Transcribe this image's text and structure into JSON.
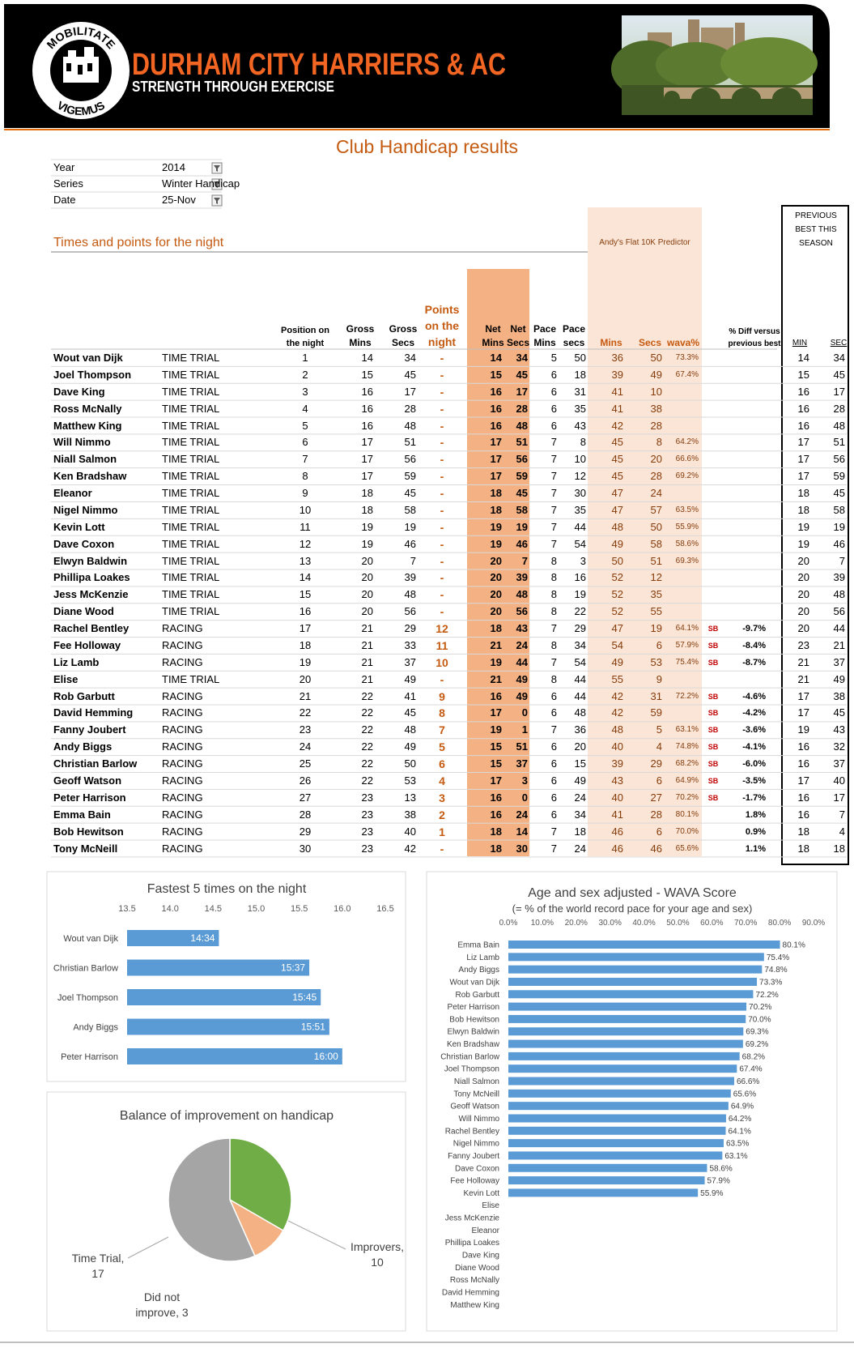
{
  "header": {
    "title": "DURHAM CITY HARRIERS & AC",
    "subtitle": "STRENGTH THROUGH EXERCISE",
    "motto_top": "MOBILITATE",
    "motto_bottom": "VIGEMUS"
  },
  "page_title": "Club Handicap results",
  "filters": [
    {
      "label": "Year",
      "value": 2014
    },
    {
      "label": "Series",
      "value": "Winter Handicap"
    },
    {
      "label": "Date",
      "value": "25-Nov"
    }
  ],
  "section_title": "Times and points for the night",
  "predictor_label": "Andy's Flat 10K Predictor",
  "previous_best_label": "PREVIOUS BEST THIS SEASON",
  "table": {
    "columns": [
      "Position on the night",
      "Gross Mins",
      "Gross Secs",
      "Points on the night",
      "Net Mins",
      "Net Secs",
      "Pace Mins",
      "Pace secs",
      "Mins",
      "Secs",
      "wava%",
      "% Diff versus previous best",
      "MIN",
      "SEC"
    ],
    "rows": [
      [
        "Wout van Dijk",
        "TIME TRIAL",
        1,
        14,
        34,
        "-",
        14,
        34,
        5,
        50,
        36,
        50,
        "73.3%",
        null,
        null,
        14,
        34
      ],
      [
        "Joel Thompson",
        "TIME TRIAL",
        2,
        15,
        45,
        "-",
        15,
        45,
        6,
        18,
        39,
        49,
        "67.4%",
        null,
        null,
        15,
        45
      ],
      [
        "Dave King",
        "TIME TRIAL",
        3,
        16,
        17,
        "-",
        16,
        17,
        6,
        31,
        41,
        10,
        null,
        null,
        null,
        16,
        17
      ],
      [
        "Ross McNally",
        "TIME TRIAL",
        4,
        16,
        28,
        "-",
        16,
        28,
        6,
        35,
        41,
        38,
        null,
        null,
        null,
        16,
        28
      ],
      [
        "Matthew King",
        "TIME TRIAL",
        5,
        16,
        48,
        "-",
        16,
        48,
        6,
        43,
        42,
        28,
        null,
        null,
        null,
        16,
        48
      ],
      [
        "Will Nimmo",
        "TIME TRIAL",
        6,
        17,
        51,
        "-",
        17,
        51,
        7,
        8,
        45,
        8,
        "64.2%",
        null,
        null,
        17,
        51
      ],
      [
        "Niall Salmon",
        "TIME TRIAL",
        7,
        17,
        56,
        "-",
        17,
        56,
        7,
        10,
        45,
        20,
        "66.6%",
        null,
        null,
        17,
        56
      ],
      [
        "Ken Bradshaw",
        "TIME TRIAL",
        8,
        17,
        59,
        "-",
        17,
        59,
        7,
        12,
        45,
        28,
        "69.2%",
        null,
        null,
        17,
        59
      ],
      [
        "Eleanor",
        "TIME TRIAL",
        9,
        18,
        45,
        "-",
        18,
        45,
        7,
        30,
        47,
        24,
        null,
        null,
        null,
        18,
        45
      ],
      [
        "Nigel Nimmo",
        "TIME TRIAL",
        10,
        18,
        58,
        "-",
        18,
        58,
        7,
        35,
        47,
        57,
        "63.5%",
        null,
        null,
        18,
        58
      ],
      [
        "Kevin Lott",
        "TIME TRIAL",
        11,
        19,
        19,
        "-",
        19,
        19,
        7,
        44,
        48,
        50,
        "55.9%",
        null,
        null,
        19,
        19
      ],
      [
        "Dave Coxon",
        "TIME TRIAL",
        12,
        19,
        46,
        "-",
        19,
        46,
        7,
        54,
        49,
        58,
        "58.6%",
        null,
        null,
        19,
        46
      ],
      [
        "Elwyn Baldwin",
        "TIME TRIAL",
        13,
        20,
        7,
        "-",
        20,
        7,
        8,
        3,
        50,
        51,
        "69.3%",
        null,
        null,
        20,
        7
      ],
      [
        "Phillipa Loakes",
        "TIME TRIAL",
        14,
        20,
        39,
        "-",
        20,
        39,
        8,
        16,
        52,
        12,
        null,
        null,
        null,
        20,
        39
      ],
      [
        "Jess McKenzie",
        "TIME TRIAL",
        15,
        20,
        48,
        "-",
        20,
        48,
        8,
        19,
        52,
        35,
        null,
        null,
        null,
        20,
        48
      ],
      [
        "Diane Wood",
        "TIME TRIAL",
        16,
        20,
        56,
        "-",
        20,
        56,
        8,
        22,
        52,
        55,
        null,
        null,
        null,
        20,
        56
      ],
      [
        "Rachel Bentley",
        "RACING",
        17,
        21,
        29,
        12,
        18,
        43,
        7,
        29,
        47,
        19,
        "64.1%",
        "SB",
        "-9.7%",
        20,
        44
      ],
      [
        "Fee Holloway",
        "RACING",
        18,
        21,
        33,
        11,
        21,
        24,
        8,
        34,
        54,
        6,
        "57.9%",
        "SB",
        "-8.4%",
        23,
        21
      ],
      [
        "Liz Lamb",
        "RACING",
        19,
        21,
        37,
        10,
        19,
        44,
        7,
        54,
        49,
        53,
        "75.4%",
        "SB",
        "-8.7%",
        21,
        37
      ],
      [
        "Elise",
        "TIME TRIAL",
        20,
        21,
        49,
        "-",
        21,
        49,
        8,
        44,
        55,
        9,
        null,
        null,
        null,
        21,
        49
      ],
      [
        "Rob Garbutt",
        "RACING",
        21,
        22,
        41,
        9,
        16,
        49,
        6,
        44,
        42,
        31,
        "72.2%",
        "SB",
        "-4.6%",
        17,
        38
      ],
      [
        "David Hemming",
        "RACING",
        22,
        22,
        45,
        8,
        17,
        0,
        6,
        48,
        42,
        59,
        null,
        "SB",
        "-4.2%",
        17,
        45
      ],
      [
        "Fanny Joubert",
        "RACING",
        23,
        22,
        48,
        7,
        19,
        1,
        7,
        36,
        48,
        5,
        "63.1%",
        "SB",
        "-3.6%",
        19,
        43
      ],
      [
        "Andy Biggs",
        "RACING",
        24,
        22,
        49,
        5,
        15,
        51,
        6,
        20,
        40,
        4,
        "74.8%",
        "SB",
        "-4.1%",
        16,
        32
      ],
      [
        "Christian Barlow",
        "RACING",
        25,
        22,
        50,
        6,
        15,
        37,
        6,
        15,
        39,
        29,
        "68.2%",
        "SB",
        "-6.0%",
        16,
        37
      ],
      [
        "Geoff Watson",
        "RACING",
        26,
        22,
        53,
        4,
        17,
        3,
        6,
        49,
        43,
        6,
        "64.9%",
        "SB",
        "-3.5%",
        17,
        40
      ],
      [
        "Peter Harrison",
        "RACING",
        27,
        23,
        13,
        3,
        16,
        0,
        6,
        24,
        40,
        27,
        "70.2%",
        "SB",
        "-1.7%",
        16,
        17
      ],
      [
        "Emma Bain",
        "RACING",
        28,
        23,
        38,
        2,
        16,
        24,
        6,
        34,
        41,
        28,
        "80.1%",
        null,
        "1.8%",
        16,
        7
      ],
      [
        "Bob Hewitson",
        "RACING",
        29,
        23,
        40,
        1,
        18,
        14,
        7,
        18,
        46,
        6,
        "70.0%",
        null,
        "0.9%",
        18,
        4
      ],
      [
        "Tony McNeill",
        "RACING",
        30,
        23,
        42,
        "-",
        18,
        30,
        7,
        24,
        46,
        46,
        "65.6%",
        null,
        "1.1%",
        18,
        18
      ]
    ]
  },
  "chart_data": [
    {
      "type": "bar",
      "orientation": "horizontal",
      "title": "Fastest 5 times on the night",
      "color": "#5b9bd5",
      "categories": [
        "Wout van Dijk",
        "Christian Barlow",
        "Joel Thompson",
        "Andy Biggs",
        "Peter Harrison"
      ],
      "values": [
        14.5667,
        15.6167,
        15.75,
        15.85,
        16
      ],
      "value_labels": [
        "14:34",
        "15:37",
        "15:45",
        "15:51",
        "16:00"
      ],
      "xlim": [
        13.5,
        16.5
      ],
      "xticks": [
        13.5,
        {
          "value": 14,
          "label": "14.0"
        },
        14.5,
        {
          "value": 15,
          "label": "15.0"
        },
        15.5,
        {
          "value": 16,
          "label": "16.0"
        },
        16.5
      ]
    },
    {
      "type": "bar",
      "orientation": "horizontal",
      "title": "Age and sex adjusted - WAVA Score",
      "subtitle": "(= % of the world record pace for your age and sex)",
      "color": "#5b9bd5",
      "categories": [
        "Emma Bain",
        "Liz Lamb",
        "Andy Biggs",
        "Wout van Dijk",
        "Rob Garbutt",
        "Peter Harrison",
        "Bob Hewitson",
        "Elwyn Baldwin",
        "Ken Bradshaw",
        "Christian Barlow",
        "Joel Thompson",
        "Niall Salmon",
        "Tony McNeill",
        "Geoff Watson",
        "Will Nimmo",
        "Rachel Bentley",
        "Nigel Nimmo",
        "Fanny Joubert",
        "Dave Coxon",
        "Fee Holloway",
        "Kevin Lott",
        "Elise",
        "Jess McKenzie",
        "Eleanor",
        "Phillipa Loakes",
        "Dave King",
        "Diane Wood",
        "Ross McNally",
        "David Hemming",
        "Matthew King"
      ],
      "values": [
        80.1,
        75.4,
        74.8,
        73.3,
        72.2,
        70.2,
        70.0,
        69.3,
        69.2,
        68.2,
        67.4,
        66.6,
        65.6,
        64.9,
        64.2,
        64.1,
        63.5,
        63.1,
        58.6,
        57.9,
        55.9,
        null,
        null,
        null,
        null,
        null,
        null,
        null,
        null,
        null
      ],
      "value_labels": [
        "80.1%",
        "75.4%",
        "74.8%",
        "73.3%",
        "72.2%",
        "70.2%",
        "70.0%",
        "69.3%",
        "69.2%",
        "68.2%",
        "67.4%",
        "66.6%",
        "65.6%",
        "64.9%",
        "64.2%",
        "64.1%",
        "63.5%",
        "63.1%",
        "58.6%",
        "57.9%",
        "55.9%",
        null,
        null,
        null,
        null,
        null,
        null,
        null,
        null,
        null
      ],
      "xlim": [
        0,
        90
      ],
      "xticks": [
        {
          "value": 0,
          "label": "0.0%"
        },
        {
          "value": 10,
          "label": "10.0%"
        },
        {
          "value": 20,
          "label": "20.0%"
        },
        {
          "value": 30,
          "label": "30.0%"
        },
        {
          "value": 40,
          "label": "40.0%"
        },
        {
          "value": 50,
          "label": "50.0%"
        },
        {
          "value": 60,
          "label": "60.0%"
        },
        {
          "value": 70,
          "label": "70.0%"
        },
        {
          "value": 80,
          "label": "80.0%"
        },
        {
          "value": 90,
          "label": "90.0%"
        }
      ]
    },
    {
      "type": "pie",
      "title": "Balance of improvement on handicap",
      "values": [
        10,
        3,
        17
      ],
      "value_labels": [
        "Improvers, 10",
        "Did not improve, 3",
        "Time Trial, 17"
      ],
      "colors": [
        "#70ad47",
        "#f4b183",
        "#a5a5a5"
      ]
    }
  ]
}
